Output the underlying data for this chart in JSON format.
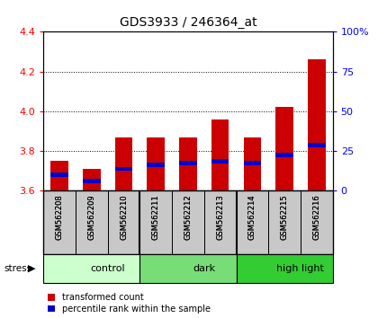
{
  "title": "GDS3933 / 246364_at",
  "samples": [
    "GSM562208",
    "GSM562209",
    "GSM562210",
    "GSM562211",
    "GSM562212",
    "GSM562213",
    "GSM562214",
    "GSM562215",
    "GSM562216"
  ],
  "transformed_counts": [
    3.75,
    3.71,
    3.87,
    3.87,
    3.87,
    3.96,
    3.87,
    4.02,
    4.26
  ],
  "percentile_values": [
    3.68,
    3.65,
    3.71,
    3.73,
    3.74,
    3.75,
    3.74,
    3.78,
    3.83
  ],
  "y_min": 3.6,
  "y_max": 4.4,
  "y_ticks": [
    3.6,
    3.8,
    4.0,
    4.2,
    4.4
  ],
  "y2_labels": [
    "0",
    "25",
    "50",
    "75",
    "100%"
  ],
  "y2_tick_positions": [
    3.6,
    3.8,
    4.0,
    4.2,
    4.4
  ],
  "groups": [
    {
      "label": "control",
      "start": 0,
      "end": 3,
      "color": "#ccffcc"
    },
    {
      "label": "dark",
      "start": 3,
      "end": 6,
      "color": "#77dd77"
    },
    {
      "label": "high light",
      "start": 6,
      "end": 9,
      "color": "#33cc33"
    }
  ],
  "stress_label": "stress",
  "bar_color": "#cc0000",
  "percentile_color": "#0000cc",
  "bar_width": 0.55,
  "label_area_color": "#c8c8c8",
  "legend_items": [
    "transformed count",
    "percentile rank within the sample"
  ]
}
